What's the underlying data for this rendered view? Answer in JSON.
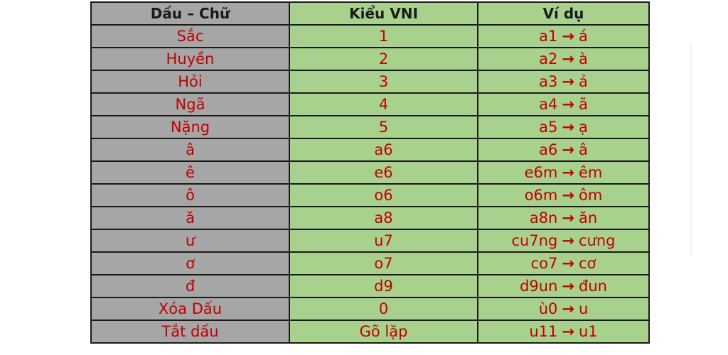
{
  "headers": [
    "Dấu – Chữ",
    "Kiểu VNI",
    "Ví dụ"
  ],
  "arrow_glyph": "→",
  "rows": [
    {
      "mark": "Sắc",
      "vni": "1",
      "ex_in": "a1",
      "ex_out": "á"
    },
    {
      "mark": "Huyền",
      "vni": "2",
      "ex_in": "a2",
      "ex_out": "à"
    },
    {
      "mark": "Hỏi",
      "vni": "3",
      "ex_in": "a3",
      "ex_out": "ả"
    },
    {
      "mark": "Ngã",
      "vni": "4",
      "ex_in": "a4",
      "ex_out": "ã"
    },
    {
      "mark": "Nặng",
      "vni": "5",
      "ex_in": "a5",
      "ex_out": "ạ"
    },
    {
      "mark": "â",
      "vni": "a6",
      "ex_in": "a6",
      "ex_out": "â"
    },
    {
      "mark": "ê",
      "vni": "e6",
      "ex_in": "e6m",
      "ex_out": "êm"
    },
    {
      "mark": "ô",
      "vni": "o6",
      "ex_in": "o6m",
      "ex_out": "ôm"
    },
    {
      "mark": "ă",
      "vni": "a8",
      "ex_in": "a8n",
      "ex_out": "ăn"
    },
    {
      "mark": "ư",
      "vni": "u7",
      "ex_in": "cu7ng",
      "ex_out": "cưng"
    },
    {
      "mark": "ơ",
      "vni": "o7",
      "ex_in": "co7",
      "ex_out": "cơ"
    },
    {
      "mark": "đ",
      "vni": "d9",
      "ex_in": "d9un",
      "ex_out": "đun"
    },
    {
      "mark": "Xóa Dấu",
      "vni": "0",
      "ex_in": "ù0",
      "ex_out": "u"
    },
    {
      "mark": "Tắt dấu",
      "vni": "Gõ lặp",
      "ex_in": "u11",
      "ex_out": "u1"
    }
  ],
  "colors": {
    "header_gray": "#a6a6a6",
    "header_green": "#a9d18e",
    "text_red": "#c00000",
    "border": "#1a1a1a"
  }
}
